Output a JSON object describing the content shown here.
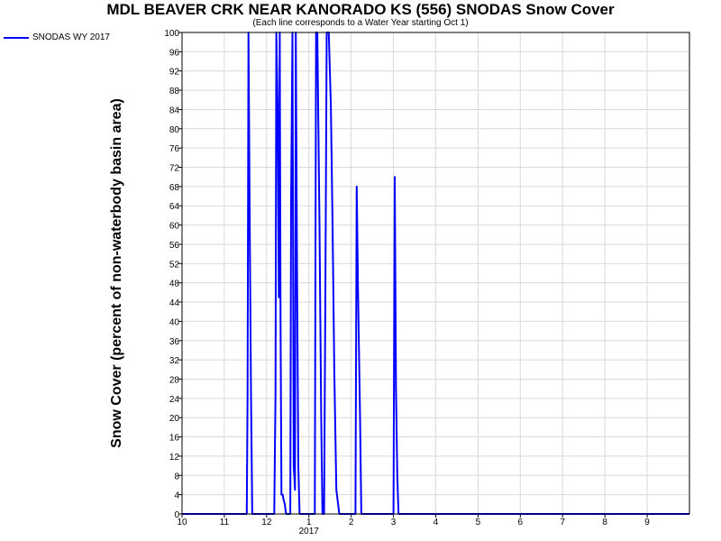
{
  "chart_data": {
    "type": "line",
    "title": "MDL BEAVER CRK NEAR KANORADO KS (556) SNODAS Snow Cover",
    "subtitle": "(Each line corresponds to a Water Year starting Oct 1)",
    "ylabel": "Snow Cover (percent of non-waterbody basin area)",
    "xlabel": "",
    "ylim": [
      0,
      100
    ],
    "yticks": [
      0,
      4,
      8,
      12,
      16,
      20,
      24,
      28,
      32,
      36,
      40,
      44,
      48,
      52,
      56,
      60,
      64,
      68,
      72,
      76,
      80,
      84,
      88,
      92,
      96,
      100
    ],
    "xlim": [
      0,
      12
    ],
    "xtick_labels": [
      "10",
      "11",
      "12",
      "1",
      "2",
      "3",
      "4",
      "5",
      "6",
      "7",
      "8",
      "9"
    ],
    "xtick_positions": [
      0,
      1.0,
      2.0,
      3.0,
      4.0,
      5.0,
      6.0,
      7.0,
      8.0,
      9.0,
      10.0,
      11.0
    ],
    "year_label": "2017",
    "grid": true,
    "legend_position": "top-left",
    "series": [
      {
        "name": "SNODAS WY 2017",
        "color": "#0000ff",
        "x": [
          0,
          1.53,
          1.55,
          1.57,
          1.6,
          1.63,
          1.66,
          1.7,
          2.18,
          2.21,
          2.23,
          2.26,
          2.29,
          2.31,
          2.33,
          2.35,
          2.38,
          2.4,
          2.43,
          2.46,
          2.5,
          2.56,
          2.58,
          2.61,
          2.64,
          2.67,
          2.69,
          2.72,
          2.75,
          2.78,
          3.14,
          3.17,
          3.2,
          3.25,
          3.29,
          3.32,
          3.36,
          3.39,
          3.42,
          3.47,
          3.52,
          3.56,
          3.6,
          3.65,
          3.72,
          4.1,
          4.13,
          4.16,
          4.21,
          4.24,
          5.0,
          5.03,
          5.06,
          5.09,
          5.12,
          5.16,
          5.7,
          12.0
        ],
        "y": [
          0,
          0,
          25,
          100,
          60,
          25,
          0,
          0,
          0,
          25,
          100,
          85,
          45,
          100,
          40,
          4,
          4,
          3,
          2,
          0,
          0,
          0,
          65,
          100,
          10,
          5,
          100,
          50,
          10,
          0,
          0,
          100,
          100,
          60,
          20,
          0,
          0,
          45,
          100,
          100,
          85,
          60,
          30,
          5,
          0,
          0,
          68,
          47,
          20,
          0,
          0,
          70,
          26,
          8,
          0,
          0,
          0,
          0
        ]
      }
    ]
  }
}
